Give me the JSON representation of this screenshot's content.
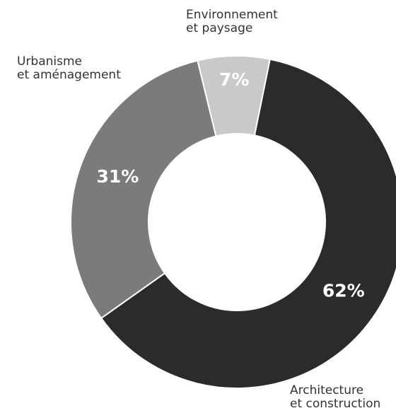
{
  "chart_data": {
    "type": "donut",
    "categories": [
      "Environnement\net paysage",
      "Architecture\net construction",
      "Urbanisme\net aménagement"
    ],
    "values": [
      7,
      62,
      31
    ],
    "value_labels": [
      "7%",
      "62%",
      "31%"
    ],
    "colors": [
      "#c9c9c9",
      "#2b2b2b",
      "#7b7b7b"
    ]
  }
}
